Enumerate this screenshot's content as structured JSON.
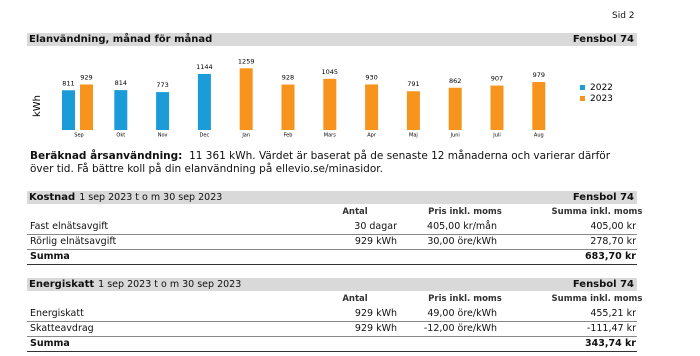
{
  "page_label": "Sid 2",
  "usage": {
    "title": "Elanvändning, månad för månad",
    "site": "Fensbol 74",
    "chart": {
      "type": "bar",
      "y_label": "kWh",
      "categories": [
        "Sep",
        "Okt",
        "Nov",
        "Dec",
        "Jan",
        "Feb",
        "Mars",
        "Apr",
        "Maj",
        "Juni",
        "Juli",
        "Aug"
      ],
      "series": [
        {
          "name": "2022",
          "color": "#1b9bd7",
          "values": [
            811,
            814,
            773,
            1144,
            null,
            null,
            null,
            null,
            null,
            null,
            null,
            null
          ]
        },
        {
          "name": "2023",
          "color": "#f7941d",
          "values": [
            929,
            null,
            null,
            null,
            1259,
            928,
            1045,
            930,
            791,
            862,
            907,
            979
          ]
        }
      ]
    },
    "estimate": {
      "label": "Beräknad årsanvändning:",
      "value": "11 361",
      "unit": "kWh.",
      "text": "Värdet är baserat på de senaste 12 månaderna och varierar därför över tid. Få bättre koll på din elanvändning på ellevio.se/minasidor."
    }
  },
  "sections": [
    {
      "title": "Kostnad",
      "period": "1 sep 2023 t o m 30 sep 2023",
      "site": "Fensbol 74",
      "columns": [
        "Antal",
        "Pris inkl. moms",
        "Summa inkl. moms"
      ],
      "rows": [
        [
          "Fast elnätsavgift",
          "30 dagar",
          "405,00 kr/mån",
          "405,00 kr"
        ],
        [
          "Rörlig elnätsavgift",
          "929 kWh",
          "30,00 öre/kWh",
          "278,70 kr"
        ]
      ],
      "total": [
        "Summa",
        "683,70 kr"
      ]
    },
    {
      "title": "Energiskatt",
      "period": "1 sep 2023 t o m 30 sep 2023",
      "site": "Fensbol 74",
      "columns": [
        "Antal",
        "Pris inkl. moms",
        "Summa inkl. moms"
      ],
      "rows": [
        [
          "Energiskatt",
          "929 kWh",
          "49,00 öre/kWh",
          "455,21 kr"
        ],
        [
          "Skatteavdrag",
          "929 kWh",
          "-12,00 öre/kWh",
          "-111,47 kr"
        ]
      ],
      "total": [
        "Summa",
        "343,74 kr"
      ]
    }
  ]
}
